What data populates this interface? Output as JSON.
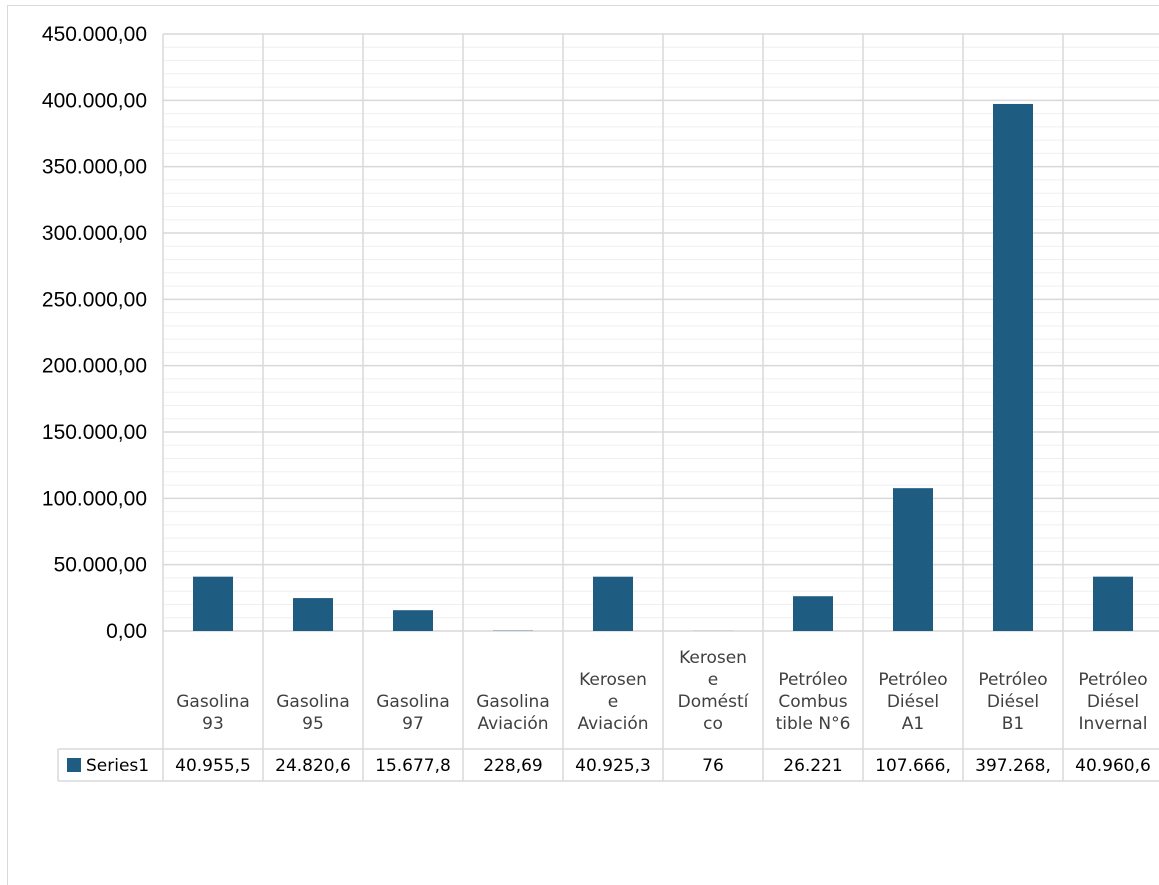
{
  "chart_data": {
    "type": "bar",
    "categories": [
      [
        "Gasolina",
        "93"
      ],
      [
        "Gasolina",
        "95"
      ],
      [
        "Gasolina",
        "97"
      ],
      [
        "Gasolina",
        "Aviación"
      ],
      [
        "Kerosen",
        "e",
        "Aviación"
      ],
      [
        "Kerosen",
        "e",
        "Doméstí",
        "co"
      ],
      [
        "Petróleo",
        "Combus",
        "tible N°6"
      ],
      [
        "Petróleo",
        "Diésel",
        "A1"
      ],
      [
        "Petróleo",
        "Diésel",
        "B1"
      ],
      [
        "Petróleo",
        "Diésel",
        "Invernal"
      ]
    ],
    "series": [
      {
        "name": "Series1",
        "values": [
          40955.5,
          24820.6,
          15677.8,
          228.69,
          40925.3,
          76,
          26221,
          107666,
          397268,
          40960.6
        ],
        "value_labels": [
          "40.955,5",
          "24.820,6",
          "15.677,8",
          "228,69",
          "40.925,3",
          "76",
          "26.221",
          "107.666,",
          "397.268,",
          "40.960,6"
        ],
        "color": "#1f5c82"
      }
    ],
    "ylim": [
      0,
      450000
    ],
    "y_ticks": [
      {
        "value": 0,
        "label": "0,00"
      },
      {
        "value": 50000,
        "label": "50.000,00"
      },
      {
        "value": 100000,
        "label": "100.000,00"
      },
      {
        "value": 150000,
        "label": "150.000,00"
      },
      {
        "value": 200000,
        "label": "200.000,00"
      },
      {
        "value": 250000,
        "label": "250.000,00"
      },
      {
        "value": 300000,
        "label": "300.000,00"
      },
      {
        "value": 350000,
        "label": "350.000,00"
      },
      {
        "value": 400000,
        "label": "400.000,00"
      },
      {
        "value": 450000,
        "label": "450.000,00"
      }
    ],
    "minor_step": 10000,
    "grid": true,
    "data_table": true,
    "title": "",
    "xlabel": "",
    "ylabel": ""
  },
  "colors": {
    "bar": "#1f5c82",
    "major_grid": "#d9d9d9",
    "minor_grid": "#efefef",
    "table_border": "#d9d9d9"
  }
}
